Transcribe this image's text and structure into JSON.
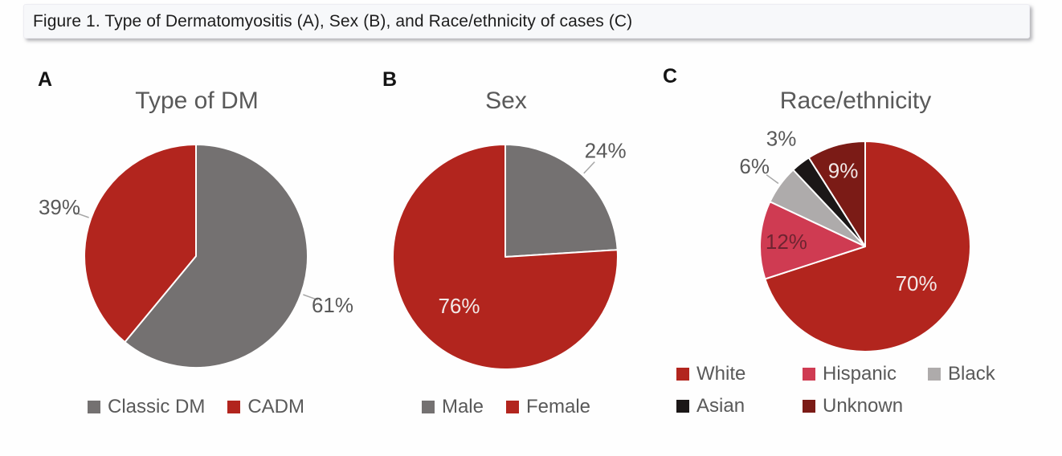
{
  "figure_caption": "Figure 1. Type of Dermatomyositis (A), Sex (B), and Race/ethnicity of cases (C)",
  "colors": {
    "brick_red": "#B2251E",
    "dark_gray": "#747171",
    "crimson": "#CF3B52",
    "light_gray": "#AEABAB",
    "black": "#1B1717",
    "dark_red": "#7B1B16",
    "label_gray": "#595959",
    "inside_label_light": "#F2E9E8",
    "inside_label_dark_maroon": "#6E2431",
    "caption_bg": "#F7F8FA"
  },
  "chart_data": [
    {
      "id": "type-of-dm",
      "panel_label": "A",
      "type": "pie",
      "title": "Type of DM",
      "start_angle_deg": 0,
      "direction": "clockwise",
      "legend_position": "bottom",
      "slices": [
        {
          "label": "Classic DM",
          "value_pct": 61,
          "data_label": "61%",
          "color": "#747171",
          "label_placement": "outside",
          "label_color": "#595959",
          "leader_line": true
        },
        {
          "label": "CADM",
          "value_pct": 39,
          "data_label": "39%",
          "color": "#B2251E",
          "label_placement": "outside",
          "label_color": "#595959",
          "leader_line": true
        }
      ]
    },
    {
      "id": "sex",
      "panel_label": "B",
      "type": "pie",
      "title": "Sex",
      "start_angle_deg": 0,
      "direction": "clockwise",
      "legend_position": "bottom",
      "slices": [
        {
          "label": "Male",
          "value_pct": 24,
          "data_label": "24%",
          "color": "#747171",
          "label_placement": "outside",
          "label_color": "#595959",
          "leader_line": true
        },
        {
          "label": "Female",
          "value_pct": 76,
          "data_label": "76%",
          "color": "#B2251E",
          "label_placement": "inside",
          "label_color": "#F2E9E8",
          "leader_line": false
        }
      ]
    },
    {
      "id": "race-ethnicity",
      "panel_label": "C",
      "type": "pie",
      "title": "Race/ethnicity",
      "start_angle_deg": 0,
      "direction": "clockwise",
      "legend_position": "bottom-two-rows",
      "slices": [
        {
          "label": "White",
          "value_pct": 70,
          "data_label": "70%",
          "color": "#B2251E",
          "label_placement": "inside",
          "label_color": "#F2E9E8",
          "leader_line": false
        },
        {
          "label": "Hispanic",
          "value_pct": 12,
          "data_label": "12%",
          "color": "#CF3B52",
          "label_placement": "inside",
          "label_color": "#6E2431",
          "leader_line": false
        },
        {
          "label": "Black",
          "value_pct": 6,
          "data_label": "6%",
          "color": "#AEABAB",
          "label_placement": "outside",
          "label_color": "#595959",
          "leader_line": true
        },
        {
          "label": "Asian",
          "value_pct": 3,
          "data_label": "3%",
          "color": "#1B1717",
          "label_placement": "outside",
          "label_color": "#595959",
          "leader_line": false
        },
        {
          "label": "Unknown",
          "value_pct": 9,
          "data_label": "9%",
          "color": "#7B1B16",
          "label_placement": "inside",
          "label_color": "#F2E9E8",
          "leader_line": false
        }
      ]
    }
  ]
}
